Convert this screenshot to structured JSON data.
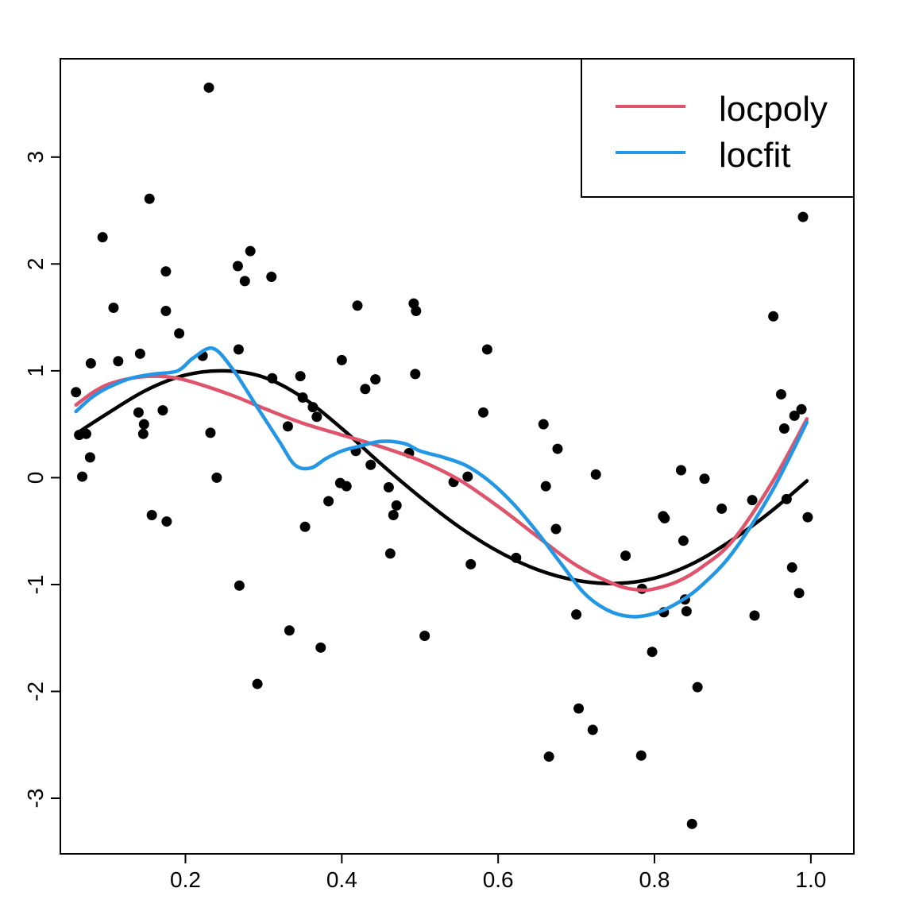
{
  "chart_data": {
    "type": "scatter",
    "title": "",
    "xlabel": "",
    "ylabel": "",
    "xlim": [
      0.04,
      1.055
    ],
    "ylim": [
      -3.52,
      3.92
    ],
    "x_ticks": [
      0.2,
      0.4,
      0.6,
      0.8,
      1.0
    ],
    "x_tick_labels": [
      "0.2",
      "0.4",
      "0.6",
      "0.8",
      "1.0"
    ],
    "y_ticks": [
      -3,
      -2,
      -1,
      0,
      1,
      2,
      3
    ],
    "y_tick_labels": [
      "-3",
      "-2",
      "-1",
      "0",
      "1",
      "2",
      "3"
    ],
    "grid": false,
    "legend_position": "top-right",
    "points": [
      [
        0.06,
        0.8
      ],
      [
        0.064,
        0.4
      ],
      [
        0.068,
        0.01
      ],
      [
        0.073,
        0.41
      ],
      [
        0.078,
        0.19
      ],
      [
        0.079,
        1.07
      ],
      [
        0.094,
        2.25
      ],
      [
        0.108,
        1.59
      ],
      [
        0.114,
        1.09
      ],
      [
        0.14,
        0.61
      ],
      [
        0.142,
        1.16
      ],
      [
        0.146,
        0.41
      ],
      [
        0.147,
        0.5
      ],
      [
        0.154,
        2.61
      ],
      [
        0.157,
        -0.35
      ],
      [
        0.171,
        0.63
      ],
      [
        0.175,
        1.93
      ],
      [
        0.175,
        1.56
      ],
      [
        0.176,
        -0.41
      ],
      [
        0.192,
        1.35
      ],
      [
        0.222,
        1.14
      ],
      [
        0.23,
        3.65
      ],
      [
        0.232,
        0.42
      ],
      [
        0.24,
        0.0
      ],
      [
        0.267,
        1.98
      ],
      [
        0.268,
        1.2
      ],
      [
        0.269,
        -1.01
      ],
      [
        0.276,
        1.84
      ],
      [
        0.283,
        2.12
      ],
      [
        0.292,
        -1.93
      ],
      [
        0.31,
        1.88
      ],
      [
        0.311,
        0.93
      ],
      [
        0.331,
        0.48
      ],
      [
        0.333,
        -1.43
      ],
      [
        0.347,
        0.95
      ],
      [
        0.35,
        0.75
      ],
      [
        0.353,
        -0.46
      ],
      [
        0.363,
        0.66
      ],
      [
        0.368,
        0.57
      ],
      [
        0.373,
        -1.59
      ],
      [
        0.383,
        -0.22
      ],
      [
        0.398,
        -0.05
      ],
      [
        0.4,
        1.1
      ],
      [
        0.406,
        -0.08
      ],
      [
        0.418,
        0.25
      ],
      [
        0.42,
        1.61
      ],
      [
        0.43,
        0.83
      ],
      [
        0.437,
        0.12
      ],
      [
        0.443,
        0.92
      ],
      [
        0.46,
        -0.09
      ],
      [
        0.462,
        -0.71
      ],
      [
        0.466,
        -0.35
      ],
      [
        0.47,
        -0.26
      ],
      [
        0.486,
        0.23
      ],
      [
        0.492,
        1.63
      ],
      [
        0.494,
        0.97
      ],
      [
        0.495,
        1.56
      ],
      [
        0.506,
        -1.48
      ],
      [
        0.543,
        -0.04
      ],
      [
        0.561,
        0.01
      ],
      [
        0.565,
        -0.81
      ],
      [
        0.581,
        0.61
      ],
      [
        0.586,
        1.2
      ],
      [
        0.623,
        -0.75
      ],
      [
        0.658,
        0.5
      ],
      [
        0.661,
        -0.08
      ],
      [
        0.665,
        -2.61
      ],
      [
        0.674,
        -0.48
      ],
      [
        0.676,
        0.27
      ],
      [
        0.7,
        -1.28
      ],
      [
        0.703,
        -2.16
      ],
      [
        0.721,
        -2.36
      ],
      [
        0.725,
        0.03
      ],
      [
        0.763,
        -0.73
      ],
      [
        0.783,
        -2.6
      ],
      [
        0.784,
        -1.04
      ],
      [
        0.797,
        -1.63
      ],
      [
        0.811,
        -0.36
      ],
      [
        0.812,
        -1.26
      ],
      [
        0.813,
        -0.38
      ],
      [
        0.834,
        0.07
      ],
      [
        0.837,
        -0.59
      ],
      [
        0.839,
        -1.14
      ],
      [
        0.841,
        -1.25
      ],
      [
        0.848,
        -3.24
      ],
      [
        0.855,
        -1.96
      ],
      [
        0.864,
        -0.01
      ],
      [
        0.886,
        -0.29
      ],
      [
        0.925,
        -0.21
      ],
      [
        0.928,
        -1.29
      ],
      [
        0.952,
        1.51
      ],
      [
        0.962,
        0.78
      ],
      [
        0.966,
        0.46
      ],
      [
        0.969,
        -0.2
      ],
      [
        0.976,
        -0.84
      ],
      [
        0.979,
        0.58
      ],
      [
        0.985,
        -1.08
      ],
      [
        0.988,
        0.64
      ],
      [
        0.99,
        2.44
      ],
      [
        0.996,
        -0.37
      ]
    ],
    "series": [
      {
        "color": "#000000",
        "x": [
          0.06,
          0.1,
          0.15,
          0.2,
          0.25,
          0.3,
          0.35,
          0.4,
          0.45,
          0.5,
          0.55,
          0.6,
          0.65,
          0.7,
          0.75,
          0.8,
          0.85,
          0.9,
          0.95,
          0.995
        ],
        "y": [
          0.41,
          0.6,
          0.82,
          0.96,
          1.0,
          0.94,
          0.75,
          0.46,
          0.13,
          -0.18,
          -0.46,
          -0.69,
          -0.86,
          -0.96,
          -0.99,
          -0.94,
          -0.8,
          -0.58,
          -0.31,
          -0.03
        ]
      },
      {
        "name": "locpoly",
        "color": "#DF536B",
        "x": [
          0.06,
          0.08,
          0.1,
          0.13,
          0.16,
          0.19,
          0.22,
          0.26,
          0.3,
          0.35,
          0.4,
          0.45,
          0.5,
          0.55,
          0.6,
          0.65,
          0.7,
          0.75,
          0.78,
          0.8,
          0.83,
          0.86,
          0.9,
          0.95,
          0.995
        ],
        "y": [
          0.68,
          0.79,
          0.87,
          0.93,
          0.95,
          0.93,
          0.87,
          0.77,
          0.65,
          0.51,
          0.4,
          0.29,
          0.16,
          -0.02,
          -0.27,
          -0.55,
          -0.82,
          -1.0,
          -1.05,
          -1.04,
          -0.97,
          -0.84,
          -0.59,
          -0.05,
          0.55
        ]
      },
      {
        "name": "locfit",
        "color": "#2297E6",
        "x": [
          0.06,
          0.08,
          0.1,
          0.13,
          0.16,
          0.19,
          0.21,
          0.235,
          0.26,
          0.29,
          0.32,
          0.34,
          0.36,
          0.38,
          0.4,
          0.42,
          0.45,
          0.48,
          0.5,
          0.53,
          0.56,
          0.59,
          0.62,
          0.65,
          0.68,
          0.71,
          0.74,
          0.77,
          0.8,
          0.83,
          0.86,
          0.9,
          0.95,
          0.995
        ],
        "y": [
          0.62,
          0.75,
          0.84,
          0.93,
          0.97,
          1.0,
          1.12,
          1.21,
          1.02,
          0.68,
          0.34,
          0.12,
          0.09,
          0.18,
          0.25,
          0.29,
          0.34,
          0.32,
          0.25,
          0.19,
          0.11,
          -0.04,
          -0.25,
          -0.51,
          -0.8,
          -1.08,
          -1.24,
          -1.3,
          -1.27,
          -1.17,
          -1.01,
          -0.7,
          -0.13,
          0.52
        ]
      }
    ]
  }
}
